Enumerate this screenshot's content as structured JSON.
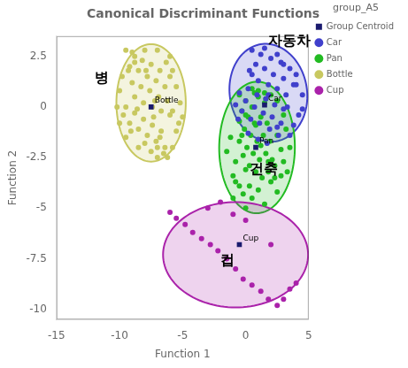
{
  "chart_data": {
    "type": "scatter",
    "title": "Canonical Discriminant Functions",
    "xlabel": "Function 1",
    "ylabel": "Function 2",
    "xlim": [
      -15,
      5
    ],
    "ylim": [
      -10.5,
      3.5
    ],
    "xticks": [
      -15,
      -10,
      -5,
      0,
      5
    ],
    "yticks": [
      -10,
      -7.5,
      -5,
      -2.5,
      0,
      2.5
    ],
    "grid": false,
    "legend": "right",
    "legend_title": "group_A5",
    "series": [
      {
        "name": "Car",
        "color": "#4040cc",
        "marker": "circle",
        "values": [
          [
            0.5,
            2.8
          ],
          [
            1.2,
            2.6
          ],
          [
            2.0,
            2.4
          ],
          [
            2.8,
            2.2
          ],
          [
            3.5,
            1.9
          ],
          [
            0.8,
            2.1
          ],
          [
            1.5,
            1.9
          ],
          [
            2.2,
            1.6
          ],
          [
            3.0,
            1.4
          ],
          [
            3.8,
            1.1
          ],
          [
            0.5,
            1.6
          ],
          [
            1.0,
            1.3
          ],
          [
            1.8,
            1.1
          ],
          [
            2.5,
            0.9
          ],
          [
            3.2,
            0.6
          ],
          [
            0.2,
            0.9
          ],
          [
            0.9,
            0.6
          ],
          [
            1.6,
            0.4
          ],
          [
            2.3,
            0.1
          ],
          [
            3.0,
            -0.1
          ],
          [
            0.0,
            0.3
          ],
          [
            0.7,
            0.0
          ],
          [
            1.4,
            -0.3
          ],
          [
            2.1,
            -0.5
          ],
          [
            2.8,
            -0.8
          ],
          [
            -0.3,
            -0.2
          ],
          [
            0.4,
            -0.6
          ],
          [
            1.1,
            -0.8
          ],
          [
            1.9,
            -1.1
          ],
          [
            2.6,
            -1.4
          ],
          [
            4.5,
            0.6
          ],
          [
            4.2,
            -0.4
          ],
          [
            4.0,
            1.1
          ],
          [
            3.8,
            -0.9
          ],
          [
            3.5,
            -1.4
          ],
          [
            1.5,
            2.9
          ],
          [
            2.5,
            2.6
          ],
          [
            3.0,
            2.1
          ],
          [
            4.0,
            1.6
          ],
          [
            4.5,
            -0.1
          ],
          [
            -0.5,
            0.7
          ],
          [
            -0.8,
            0.1
          ],
          [
            -0.6,
            -0.6
          ],
          [
            0.2,
            -1.3
          ],
          [
            1.0,
            -1.6
          ],
          [
            1.7,
            -1.8
          ],
          [
            2.5,
            -1.0
          ],
          [
            3.3,
            0.0
          ],
          [
            0.3,
            1.8
          ],
          [
            1.8,
            0.6
          ]
        ],
        "ellipse": {
          "cx": 1.8,
          "cy": 0.7,
          "width": 6.2,
          "height": 4.8,
          "angle": -8
        }
      },
      {
        "name": "Pan",
        "color": "#22bb22",
        "marker": "circle",
        "values": [
          [
            -0.5,
            0.6
          ],
          [
            0.0,
            0.3
          ],
          [
            0.5,
            0.0
          ],
          [
            1.0,
            0.5
          ],
          [
            1.5,
            0.2
          ],
          [
            -0.3,
            -0.2
          ],
          [
            0.2,
            -0.5
          ],
          [
            0.7,
            -0.8
          ],
          [
            1.2,
            -0.5
          ],
          [
            1.7,
            -0.8
          ],
          [
            -0.1,
            -1.1
          ],
          [
            0.4,
            -1.4
          ],
          [
            0.9,
            -1.7
          ],
          [
            1.4,
            -1.4
          ],
          [
            1.9,
            -1.7
          ],
          [
            0.1,
            -2.0
          ],
          [
            0.6,
            -2.3
          ],
          [
            1.1,
            -2.6
          ],
          [
            1.6,
            -2.3
          ],
          [
            2.1,
            -2.6
          ],
          [
            0.3,
            -2.9
          ],
          [
            0.8,
            -3.2
          ],
          [
            1.3,
            -3.5
          ],
          [
            1.8,
            -3.2
          ],
          [
            2.3,
            -3.5
          ],
          [
            -0.5,
            -1.7
          ],
          [
            -0.2,
            -2.4
          ],
          [
            0.0,
            -3.1
          ],
          [
            -0.8,
            -2.7
          ],
          [
            -1.0,
            -3.4
          ],
          [
            2.5,
            -1.4
          ],
          [
            2.8,
            -2.1
          ],
          [
            3.0,
            -2.7
          ],
          [
            2.3,
            -2.9
          ],
          [
            2.0,
            -3.7
          ],
          [
            0.5,
            0.9
          ],
          [
            1.0,
            0.8
          ],
          [
            1.5,
            0.7
          ],
          [
            -0.5,
            -0.7
          ],
          [
            -0.3,
            -1.4
          ],
          [
            0.0,
            -0.4
          ],
          [
            0.8,
            -0.9
          ],
          [
            1.2,
            -1.9
          ],
          [
            1.8,
            -2.7
          ],
          [
            0.3,
            -3.9
          ],
          [
            -0.8,
            -3.7
          ],
          [
            2.5,
            0.3
          ],
          [
            3.0,
            -0.4
          ],
          [
            3.2,
            -1.1
          ],
          [
            2.8,
            -3.4
          ],
          [
            1.0,
            -4.1
          ],
          [
            -0.5,
            -3.9
          ],
          [
            2.0,
            0.6
          ],
          [
            1.6,
            0.4
          ],
          [
            0.7,
            0.7
          ],
          [
            -1.2,
            -1.5
          ],
          [
            -1.5,
            -2.2
          ],
          [
            3.5,
            -2.0
          ],
          [
            3.3,
            -3.2
          ],
          [
            -0.2,
            -4.3
          ],
          [
            0.5,
            -4.5
          ],
          [
            2.5,
            -4.2
          ],
          [
            -1.0,
            -4.5
          ],
          [
            1.5,
            -4.8
          ],
          [
            0.0,
            -5.0
          ]
        ],
        "ellipse": {
          "cx": 0.9,
          "cy": -2.0,
          "width": 6.0,
          "height": 6.5,
          "angle": -3
        }
      },
      {
        "name": "Bottle",
        "color": "#c8c860",
        "marker": "circle",
        "values": [
          [
            -9.5,
            2.8
          ],
          [
            -8.8,
            2.5
          ],
          [
            -8.2,
            2.3
          ],
          [
            -7.5,
            2.1
          ],
          [
            -6.8,
            1.8
          ],
          [
            -9.2,
            2.0
          ],
          [
            -8.5,
            1.8
          ],
          [
            -7.8,
            1.5
          ],
          [
            -7.1,
            1.3
          ],
          [
            -6.4,
            1.0
          ],
          [
            -9.0,
            1.2
          ],
          [
            -8.3,
            1.0
          ],
          [
            -7.6,
            0.8
          ],
          [
            -6.9,
            0.5
          ],
          [
            -6.2,
            0.3
          ],
          [
            -8.8,
            0.5
          ],
          [
            -8.1,
            0.2
          ],
          [
            -7.4,
            0.0
          ],
          [
            -6.7,
            -0.2
          ],
          [
            -6.0,
            -0.4
          ],
          [
            -9.5,
            0.0
          ],
          [
            -8.8,
            -0.3
          ],
          [
            -8.1,
            -0.6
          ],
          [
            -7.4,
            -0.9
          ],
          [
            -6.7,
            -1.2
          ],
          [
            -9.2,
            -0.8
          ],
          [
            -8.5,
            -1.1
          ],
          [
            -7.8,
            -1.4
          ],
          [
            -7.1,
            -1.7
          ],
          [
            -6.4,
            -2.0
          ],
          [
            -9.8,
            1.5
          ],
          [
            -10.0,
            0.8
          ],
          [
            -10.2,
            0.0
          ],
          [
            -10.0,
            -0.8
          ],
          [
            -9.5,
            -1.5
          ],
          [
            -6.0,
            2.5
          ],
          [
            -5.8,
            1.8
          ],
          [
            -5.5,
            1.0
          ],
          [
            -5.2,
            0.2
          ],
          [
            -5.0,
            -0.5
          ],
          [
            -5.5,
            -1.2
          ],
          [
            -5.8,
            -2.0
          ],
          [
            -6.2,
            -2.5
          ],
          [
            -8.0,
            2.8
          ],
          [
            -7.0,
            2.8
          ],
          [
            -7.5,
            -2.2
          ],
          [
            -8.5,
            -2.0
          ],
          [
            -9.0,
            2.7
          ],
          [
            -6.5,
            -2.3
          ],
          [
            -7.0,
            -2.5
          ],
          [
            -8.0,
            -1.8
          ],
          [
            -9.3,
            1.8
          ],
          [
            -7.2,
            0.3
          ],
          [
            -6.8,
            -1.5
          ],
          [
            -8.8,
            2.2
          ],
          [
            -6.0,
            1.5
          ],
          [
            -7.3,
            -0.5
          ],
          [
            -8.6,
            -0.1
          ],
          [
            -9.7,
            -0.4
          ],
          [
            -5.3,
            -0.8
          ],
          [
            -6.3,
            2.2
          ],
          [
            -7.9,
            1.8
          ],
          [
            -5.8,
            -0.2
          ],
          [
            -9.1,
            -1.2
          ],
          [
            -7.0,
            -2.0
          ]
        ],
        "ellipse": {
          "cx": -7.5,
          "cy": 0.2,
          "width": 5.5,
          "height": 5.8,
          "angle": 0
        }
      },
      {
        "name": "Cup",
        "color": "#aa22aa",
        "marker": "circle",
        "values": [
          [
            -6.0,
            -5.2
          ],
          [
            -5.5,
            -5.5
          ],
          [
            -4.8,
            -5.8
          ],
          [
            -4.2,
            -6.2
          ],
          [
            -3.5,
            -6.5
          ],
          [
            -2.8,
            -6.8
          ],
          [
            -2.2,
            -7.1
          ],
          [
            -1.5,
            -7.5
          ],
          [
            -0.8,
            -8.0
          ],
          [
            -0.2,
            -8.5
          ],
          [
            0.5,
            -8.8
          ],
          [
            1.2,
            -9.1
          ],
          [
            1.8,
            -9.5
          ],
          [
            2.5,
            -9.8
          ],
          [
            3.0,
            -9.5
          ],
          [
            3.5,
            -9.0
          ],
          [
            -1.0,
            -5.3
          ],
          [
            0.0,
            -5.6
          ],
          [
            -3.0,
            -5.0
          ],
          [
            -2.0,
            -4.7
          ],
          [
            2.0,
            -6.8
          ],
          [
            4.0,
            -8.7
          ]
        ],
        "ellipse": {
          "cx": -0.8,
          "cy": -7.3,
          "width": 11.5,
          "height": 5.2,
          "angle": 0
        }
      },
      {
        "name": "Group Centroid",
        "color": "#1a1a6e",
        "marker": "square",
        "values": [
          [
            1.5,
            0.1
          ],
          [
            0.8,
            -2.0
          ],
          [
            -7.5,
            0.0
          ],
          [
            -0.5,
            -6.8
          ]
        ],
        "labels": [
          "Car",
          "Pan",
          "Bottle",
          "Cup"
        ]
      }
    ],
    "annotations": [
      {
        "text": "자동차",
        "x": 1.8,
        "y": 3.05
      },
      {
        "text": "병",
        "x": -12.0,
        "y": 1.2
      },
      {
        "text": "건축",
        "x": 0.3,
        "y": -3.3
      },
      {
        "text": "컵",
        "x": -2.0,
        "y": -7.8
      }
    ]
  }
}
